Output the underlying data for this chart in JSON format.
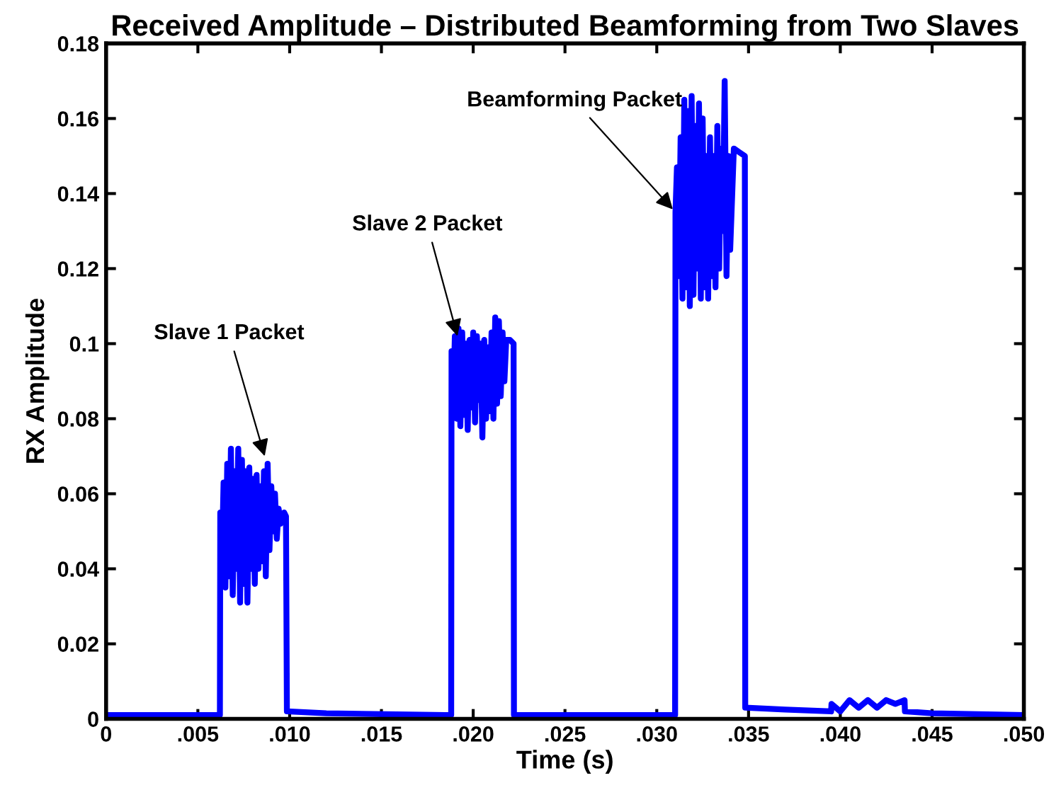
{
  "chart_data": {
    "type": "line",
    "title": "Received Amplitude – Distributed Beamforming from Two Slaves",
    "xlabel": "Time (s)",
    "ylabel": "RX Amplitude",
    "series": [
      {
        "color": "#0000ff",
        "x": [
          0,
          0.006,
          0.0062,
          0.00622,
          0.0063,
          0.0064,
          0.0065,
          0.0066,
          0.0067,
          0.0068,
          0.0069,
          0.007,
          0.0071,
          0.0072,
          0.0073,
          0.0074,
          0.0075,
          0.0076,
          0.0077,
          0.0078,
          0.0079,
          0.008,
          0.0081,
          0.0082,
          0.0083,
          0.0084,
          0.0085,
          0.0086,
          0.0087,
          0.0088,
          0.0089,
          0.009,
          0.0091,
          0.0092,
          0.0093,
          0.0094,
          0.0095,
          0.0097,
          0.0098,
          0.00985,
          0.012,
          0.0185,
          0.0188,
          0.01882,
          0.0189,
          0.019,
          0.0191,
          0.0192,
          0.0193,
          0.0194,
          0.0195,
          0.0196,
          0.0197,
          0.0198,
          0.0199,
          0.02,
          0.0201,
          0.0202,
          0.0203,
          0.0204,
          0.0205,
          0.0206,
          0.0207,
          0.0208,
          0.0209,
          0.021,
          0.0211,
          0.0212,
          0.0213,
          0.0214,
          0.0215,
          0.0216,
          0.0217,
          0.0218,
          0.022,
          0.0222,
          0.02222,
          0.031,
          0.03102,
          0.0311,
          0.0312,
          0.0313,
          0.0314,
          0.0315,
          0.0316,
          0.0317,
          0.0318,
          0.0319,
          0.032,
          0.0321,
          0.0322,
          0.0323,
          0.0324,
          0.0325,
          0.0326,
          0.0327,
          0.0328,
          0.0329,
          0.033,
          0.0331,
          0.0332,
          0.0333,
          0.0334,
          0.0335,
          0.0336,
          0.0337,
          0.0338,
          0.0339,
          0.034,
          0.0342,
          0.0345,
          0.0348,
          0.03482,
          0.037,
          0.0395,
          0.03952,
          0.04,
          0.0405,
          0.041,
          0.0415,
          0.042,
          0.0425,
          0.043,
          0.0435,
          0.04352,
          0.045,
          0.05
        ],
        "values": [
          0.001,
          0.001,
          0.001,
          0.055,
          0.04,
          0.063,
          0.035,
          0.068,
          0.038,
          0.072,
          0.033,
          0.066,
          0.04,
          0.072,
          0.031,
          0.069,
          0.036,
          0.066,
          0.031,
          0.067,
          0.04,
          0.064,
          0.036,
          0.065,
          0.04,
          0.062,
          0.042,
          0.066,
          0.038,
          0.068,
          0.045,
          0.062,
          0.05,
          0.06,
          0.048,
          0.056,
          0.052,
          0.055,
          0.054,
          0.002,
          0.0015,
          0.001,
          0.001,
          0.098,
          0.082,
          0.102,
          0.08,
          0.104,
          0.078,
          0.103,
          0.081,
          0.1,
          0.077,
          0.101,
          0.083,
          0.103,
          0.079,
          0.102,
          0.085,
          0.1,
          0.075,
          0.101,
          0.08,
          0.099,
          0.082,
          0.103,
          0.08,
          0.107,
          0.084,
          0.106,
          0.086,
          0.103,
          0.09,
          0.101,
          0.101,
          0.1,
          0.001,
          0.001,
          0.135,
          0.147,
          0.118,
          0.155,
          0.112,
          0.165,
          0.115,
          0.162,
          0.11,
          0.166,
          0.113,
          0.158,
          0.12,
          0.164,
          0.112,
          0.16,
          0.115,
          0.15,
          0.112,
          0.155,
          0.118,
          0.15,
          0.115,
          0.158,
          0.12,
          0.152,
          0.13,
          0.17,
          0.118,
          0.15,
          0.125,
          0.152,
          0.151,
          0.15,
          0.003,
          0.0025,
          0.002,
          0.004,
          0.002,
          0.005,
          0.003,
          0.005,
          0.003,
          0.005,
          0.004,
          0.005,
          0.002,
          0.0015,
          0.001
        ]
      }
    ],
    "annotations": [
      {
        "text": "Slave 1 Packet",
        "x": 0.0087,
        "y": 0.069
      },
      {
        "text": "Slave 2 Packet",
        "x": 0.0192,
        "y": 0.101
      },
      {
        "text": "Beamforming Packet",
        "x": 0.03102,
        "y": 0.135
      }
    ],
    "xlim": [
      0,
      0.05
    ],
    "ylim": [
      0,
      0.18
    ],
    "xticks": [
      0,
      {
        "value": 0.005,
        "label": ".005"
      },
      {
        "value": 0.01,
        "label": ".010"
      },
      {
        "value": 0.015,
        "label": ".015"
      },
      {
        "value": 0.02,
        "label": ".020"
      },
      {
        "value": 0.025,
        "label": ".025"
      },
      {
        "value": 0.03,
        "label": ".030"
      },
      {
        "value": 0.035,
        "label": ".035"
      },
      {
        "value": 0.04,
        "label": ".040"
      },
      {
        "value": 0.045,
        "label": ".045"
      },
      {
        "value": 0.05,
        "label": ".050"
      }
    ],
    "yticks": [
      0,
      0.02,
      0.04,
      0.06,
      0.08,
      0.1,
      0.12,
      0.14,
      0.16,
      0.18
    ],
    "grid": false,
    "line_style": "solid",
    "marker": "none"
  }
}
